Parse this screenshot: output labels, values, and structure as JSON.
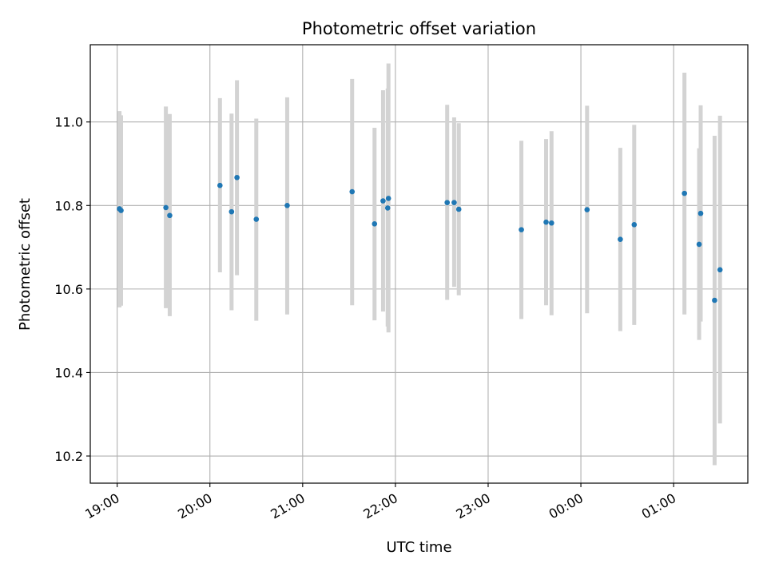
{
  "chart_data": {
    "type": "scatter",
    "title": "Photometric offset variation",
    "xlabel": "UTC time",
    "ylabel": "Photometric offset",
    "x_axis": "time",
    "xlim": [
      "2000-01-01T18:42:36",
      "2000-01-02T01:48:00"
    ],
    "ylim": [
      10.135,
      11.185
    ],
    "xticks": [
      {
        "t": "2000-01-01T19:00:00",
        "label": "19:00"
      },
      {
        "t": "2000-01-01T20:00:00",
        "label": "20:00"
      },
      {
        "t": "2000-01-01T21:00:00",
        "label": "21:00"
      },
      {
        "t": "2000-01-01T22:00:00",
        "label": "22:00"
      },
      {
        "t": "2000-01-01T23:00:00",
        "label": "23:00"
      },
      {
        "t": "2000-01-02T00:00:00",
        "label": "00:00"
      },
      {
        "t": "2000-01-02T01:00:00",
        "label": "01:00"
      }
    ],
    "yticks": [
      {
        "v": 10.2,
        "label": "10.2"
      },
      {
        "v": 10.4,
        "label": "10.4"
      },
      {
        "v": 10.6,
        "label": "10.6"
      },
      {
        "v": 10.8,
        "label": "10.8"
      },
      {
        "v": 11.0,
        "label": "11.0"
      }
    ],
    "grid": true,
    "marker_color": "#1f77b4",
    "errorbar_color": "#d3d3d3",
    "points": [
      {
        "t": "2000-01-01T19:01:30",
        "y": 10.792,
        "low": 10.556,
        "high": 11.026
      },
      {
        "t": "2000-01-01T19:02:30",
        "y": 10.788,
        "low": 10.56,
        "high": 11.016
      },
      {
        "t": "2000-01-01T19:31:30",
        "y": 10.795,
        "low": 10.554,
        "high": 11.037
      },
      {
        "t": "2000-01-01T19:34:00",
        "y": 10.776,
        "low": 10.535,
        "high": 11.019
      },
      {
        "t": "2000-01-01T20:06:30",
        "y": 10.848,
        "low": 10.64,
        "high": 11.057
      },
      {
        "t": "2000-01-01T20:14:00",
        "y": 10.785,
        "low": 10.549,
        "high": 11.02
      },
      {
        "t": "2000-01-01T20:17:30",
        "y": 10.867,
        "low": 10.633,
        "high": 11.1
      },
      {
        "t": "2000-01-01T20:30:00",
        "y": 10.767,
        "low": 10.524,
        "high": 11.008
      },
      {
        "t": "2000-01-01T20:50:00",
        "y": 10.8,
        "low": 10.539,
        "high": 11.059
      },
      {
        "t": "2000-01-01T21:32:00",
        "y": 10.833,
        "low": 10.561,
        "high": 11.103
      },
      {
        "t": "2000-01-01T21:46:30",
        "y": 10.756,
        "low": 10.525,
        "high": 10.986
      },
      {
        "t": "2000-01-01T21:52:00",
        "y": 10.811,
        "low": 10.546,
        "high": 11.076
      },
      {
        "t": "2000-01-01T21:55:30",
        "y": 10.817,
        "low": 10.496,
        "high": 11.14
      },
      {
        "t": "2000-01-01T21:55:00",
        "y": 10.794,
        "low": 10.51,
        "high": 11.08
      },
      {
        "t": "2000-01-01T22:33:30",
        "y": 10.807,
        "low": 10.574,
        "high": 11.041
      },
      {
        "t": "2000-01-01T22:38:00",
        "y": 10.807,
        "low": 10.605,
        "high": 11.011
      },
      {
        "t": "2000-01-01T22:41:00",
        "y": 10.791,
        "low": 10.585,
        "high": 10.997
      },
      {
        "t": "2000-01-01T23:21:30",
        "y": 10.742,
        "low": 10.528,
        "high": 10.955
      },
      {
        "t": "2000-01-01T23:37:30",
        "y": 10.76,
        "low": 10.561,
        "high": 10.959
      },
      {
        "t": "2000-01-01T23:41:00",
        "y": 10.758,
        "low": 10.537,
        "high": 10.978
      },
      {
        "t": "2000-01-02T00:04:00",
        "y": 10.79,
        "low": 10.542,
        "high": 11.039
      },
      {
        "t": "2000-01-02T00:25:30",
        "y": 10.719,
        "low": 10.499,
        "high": 10.938
      },
      {
        "t": "2000-01-02T00:34:30",
        "y": 10.754,
        "low": 10.514,
        "high": 10.993
      },
      {
        "t": "2000-01-02T01:07:00",
        "y": 10.829,
        "low": 10.539,
        "high": 11.118
      },
      {
        "t": "2000-01-02T01:16:30",
        "y": 10.707,
        "low": 10.478,
        "high": 10.937
      },
      {
        "t": "2000-01-02T01:17:30",
        "y": 10.781,
        "low": 10.522,
        "high": 11.04
      },
      {
        "t": "2000-01-02T01:26:30",
        "y": 10.573,
        "low": 10.178,
        "high": 10.967
      },
      {
        "t": "2000-01-02T01:30:00",
        "y": 10.646,
        "low": 10.278,
        "high": 11.015
      }
    ]
  }
}
